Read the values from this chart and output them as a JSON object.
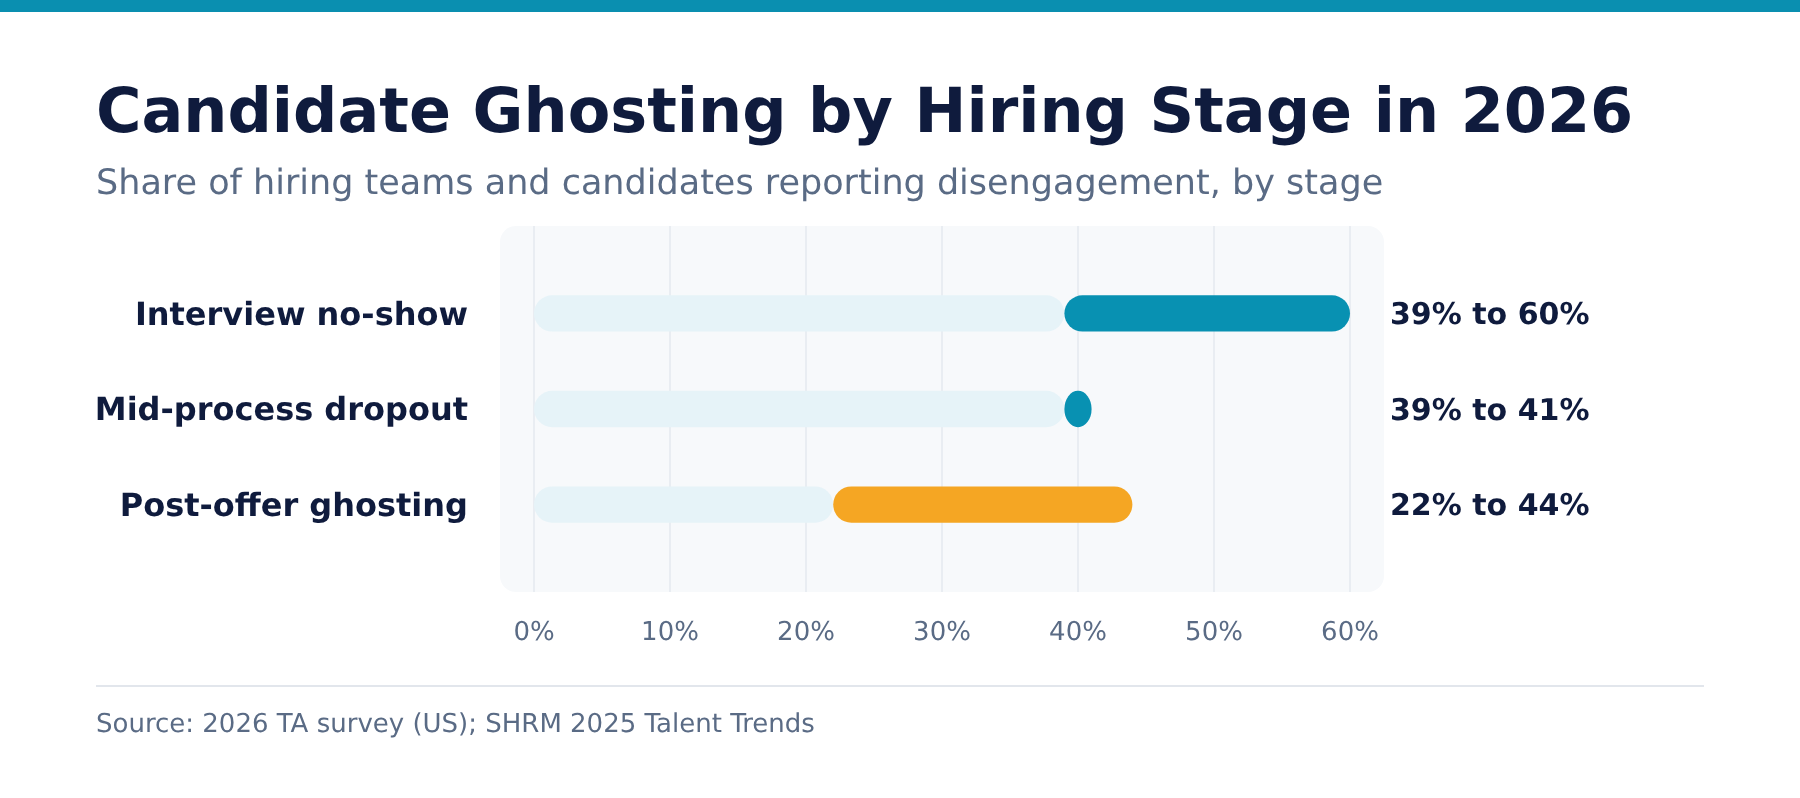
{
  "chart_data": {
    "type": "bar",
    "orientation": "horizontal",
    "stacked": true,
    "title": "Candidate Ghosting by Hiring Stage in 2026",
    "subtitle": "Share of hiring teams and candidates reporting disengagement, by stage",
    "categories": [
      "Interview no-show",
      "Mid-process dropout",
      "Post-offer ghosting"
    ],
    "series": [
      {
        "color": "#e6f3f8",
        "values": [
          39,
          39,
          22
        ]
      },
      {
        "colors": [
          "#0891b2",
          "#0891b2",
          "#f5a623"
        ],
        "values": [
          21,
          2,
          22
        ]
      }
    ],
    "xlim": [
      -2.5,
      62.5
    ],
    "xticks": [
      {
        "value": 0,
        "label": "0%"
      },
      {
        "value": 10,
        "label": "10%"
      },
      {
        "value": 20,
        "label": "20%"
      },
      {
        "value": 30,
        "label": "30%"
      },
      {
        "value": 40,
        "label": "40%"
      },
      {
        "value": 50,
        "label": "50%"
      },
      {
        "value": 60,
        "label": "60%"
      }
    ],
    "grid": "x",
    "annotations": [
      "39% to 60%",
      "39% to 41%",
      "22% to 44%",
      "Source: 2026 TA survey (US); SHRM 2025 Talent Trends"
    ]
  }
}
